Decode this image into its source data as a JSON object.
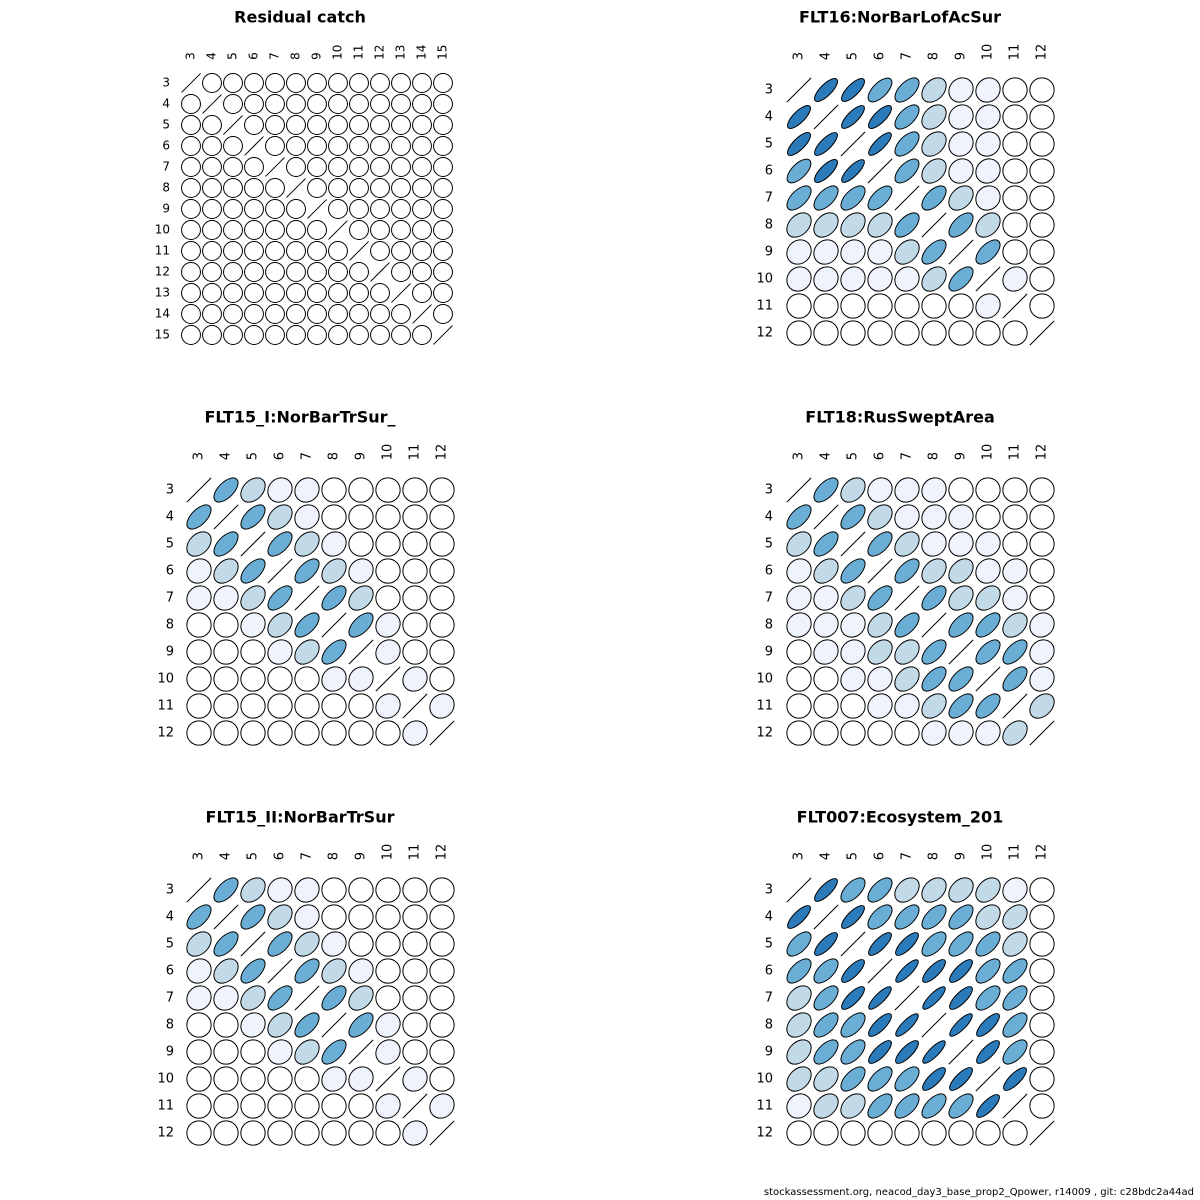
{
  "footer": "stockassessment.org, neacod_day3_base_prop2_Qpower, r14009 , git: c28bdc2a44ad",
  "colors": {
    "level_0": "#ffffff",
    "level_1": "#eef3fd",
    "level_2": "#c2d9e8",
    "level_3": "#6aaed6",
    "level_4": "#2b7bbb",
    "outline": "#000000"
  },
  "chart_data": [
    {
      "type": "heatmap",
      "title": "Residual catch",
      "ages": [
        3,
        4,
        5,
        6,
        7,
        8,
        9,
        10,
        11,
        12,
        13,
        14,
        15
      ],
      "correlation": [
        [
          1,
          0,
          0,
          0,
          0,
          0,
          0,
          0,
          0,
          0,
          0,
          0,
          0
        ],
        [
          0,
          1,
          0,
          0,
          0,
          0,
          0,
          0,
          0,
          0,
          0,
          0,
          0
        ],
        [
          0,
          0,
          1,
          0,
          0,
          0,
          0,
          0,
          0,
          0,
          0,
          0,
          0
        ],
        [
          0,
          0,
          0,
          1,
          0,
          0,
          0,
          0,
          0,
          0,
          0,
          0,
          0
        ],
        [
          0,
          0,
          0,
          0,
          1,
          0,
          0,
          0,
          0,
          0,
          0,
          0,
          0
        ],
        [
          0,
          0,
          0,
          0,
          0,
          1,
          0,
          0,
          0,
          0,
          0,
          0,
          0
        ],
        [
          0,
          0,
          0,
          0,
          0,
          0,
          1,
          0,
          0,
          0,
          0,
          0,
          0
        ],
        [
          0,
          0,
          0,
          0,
          0,
          0,
          0,
          1,
          0,
          0,
          0,
          0,
          0
        ],
        [
          0,
          0,
          0,
          0,
          0,
          0,
          0,
          0,
          1,
          0,
          0,
          0,
          0
        ],
        [
          0,
          0,
          0,
          0,
          0,
          0,
          0,
          0,
          0,
          1,
          0,
          0,
          0
        ],
        [
          0,
          0,
          0,
          0,
          0,
          0,
          0,
          0,
          0,
          0,
          1,
          0,
          0
        ],
        [
          0,
          0,
          0,
          0,
          0,
          0,
          0,
          0,
          0,
          0,
          0,
          1,
          0
        ],
        [
          0,
          0,
          0,
          0,
          0,
          0,
          0,
          0,
          0,
          0,
          0,
          0,
          1
        ]
      ]
    },
    {
      "type": "heatmap",
      "title": "FLT16:NorBarLofAcSur",
      "ages": [
        3,
        4,
        5,
        6,
        7,
        8,
        9,
        10,
        11,
        12
      ],
      "correlation": [
        [
          1,
          0.78,
          0.78,
          0.65,
          0.6,
          0.35,
          0.12,
          0.1,
          0,
          0
        ],
        [
          0.78,
          1,
          0.8,
          0.78,
          0.6,
          0.35,
          0.12,
          0.1,
          0,
          0
        ],
        [
          0.78,
          0.8,
          1,
          0.82,
          0.6,
          0.35,
          0.12,
          0.1,
          0,
          0
        ],
        [
          0.65,
          0.78,
          0.82,
          1,
          0.62,
          0.35,
          0.12,
          0.1,
          0,
          0
        ],
        [
          0.6,
          0.6,
          0.6,
          0.62,
          1,
          0.58,
          0.35,
          0.1,
          0,
          0
        ],
        [
          0.35,
          0.35,
          0.35,
          0.35,
          0.58,
          1,
          0.6,
          0.35,
          0,
          0
        ],
        [
          0.12,
          0.12,
          0.12,
          0.12,
          0.35,
          0.6,
          1,
          0.6,
          0,
          0
        ],
        [
          0.1,
          0.1,
          0.1,
          0.1,
          0.1,
          0.35,
          0.6,
          1,
          0.12,
          0
        ],
        [
          0,
          0,
          0,
          0,
          0,
          0,
          0,
          0.12,
          1,
          0
        ],
        [
          0,
          0,
          0,
          0,
          0,
          0,
          0,
          0,
          0,
          1
        ]
      ]
    },
    {
      "type": "heatmap",
      "title": "FLT15_I:NorBarTrSur_",
      "ages": [
        3,
        4,
        5,
        6,
        7,
        8,
        9,
        10,
        11,
        12
      ],
      "correlation": [
        [
          1,
          0.6,
          0.35,
          0.12,
          0.1,
          0,
          0,
          0,
          0,
          0
        ],
        [
          0.6,
          1,
          0.6,
          0.35,
          0.12,
          0,
          0,
          0,
          0,
          0
        ],
        [
          0.35,
          0.6,
          1,
          0.6,
          0.35,
          0.12,
          0,
          0,
          0,
          0
        ],
        [
          0.12,
          0.35,
          0.6,
          1,
          0.6,
          0.35,
          0.12,
          0,
          0,
          0
        ],
        [
          0.1,
          0.12,
          0.35,
          0.6,
          1,
          0.6,
          0.35,
          0,
          0,
          0
        ],
        [
          0,
          0,
          0.12,
          0.35,
          0.6,
          1,
          0.6,
          0.12,
          0,
          0
        ],
        [
          0,
          0,
          0,
          0.12,
          0.35,
          0.6,
          1,
          0.12,
          0,
          0
        ],
        [
          0,
          0,
          0,
          0,
          0,
          0.12,
          0.12,
          1,
          0.12,
          0
        ],
        [
          0,
          0,
          0,
          0,
          0,
          0,
          0,
          0.12,
          1,
          0.12
        ],
        [
          0,
          0,
          0,
          0,
          0,
          0,
          0,
          0,
          0.12,
          1
        ]
      ]
    },
    {
      "type": "heatmap",
      "title": "FLT18:RusSweptArea",
      "ages": [
        3,
        4,
        5,
        6,
        7,
        8,
        9,
        10,
        11,
        12
      ],
      "correlation": [
        [
          1,
          0.6,
          0.35,
          0.12,
          0.1,
          0.1,
          0,
          0,
          0,
          0
        ],
        [
          0.6,
          1,
          0.6,
          0.35,
          0.12,
          0.1,
          0.1,
          0,
          0,
          0
        ],
        [
          0.35,
          0.6,
          1,
          0.6,
          0.35,
          0.12,
          0.1,
          0.1,
          0,
          0
        ],
        [
          0.12,
          0.35,
          0.6,
          1,
          0.6,
          0.35,
          0.35,
          0.12,
          0.1,
          0
        ],
        [
          0.12,
          0.12,
          0.35,
          0.6,
          1,
          0.6,
          0.35,
          0.35,
          0.12,
          0
        ],
        [
          0.12,
          0.12,
          0.12,
          0.35,
          0.6,
          1,
          0.6,
          0.6,
          0.35,
          0.12
        ],
        [
          0,
          0.12,
          0.12,
          0.35,
          0.35,
          0.6,
          1,
          0.6,
          0.6,
          0.12
        ],
        [
          0,
          0,
          0.12,
          0.12,
          0.35,
          0.6,
          0.6,
          1,
          0.6,
          0.12
        ],
        [
          0,
          0,
          0,
          0.12,
          0.12,
          0.35,
          0.6,
          0.6,
          1,
          0.35
        ],
        [
          0,
          0,
          0,
          0,
          0,
          0.12,
          0.12,
          0.12,
          0.35,
          1
        ]
      ]
    },
    {
      "type": "heatmap",
      "title": "FLT15_II:NorBarTrSur",
      "ages": [
        3,
        4,
        5,
        6,
        7,
        8,
        9,
        10,
        11,
        12
      ],
      "correlation": [
        [
          1,
          0.6,
          0.35,
          0.12,
          0.1,
          0,
          0,
          0,
          0,
          0
        ],
        [
          0.6,
          1,
          0.6,
          0.35,
          0.12,
          0,
          0,
          0,
          0,
          0
        ],
        [
          0.35,
          0.6,
          1,
          0.6,
          0.35,
          0.12,
          0,
          0,
          0,
          0
        ],
        [
          0.12,
          0.35,
          0.6,
          1,
          0.6,
          0.35,
          0.12,
          0,
          0,
          0
        ],
        [
          0.1,
          0.12,
          0.35,
          0.6,
          1,
          0.6,
          0.35,
          0,
          0,
          0
        ],
        [
          0,
          0,
          0.12,
          0.35,
          0.6,
          1,
          0.6,
          0.12,
          0,
          0
        ],
        [
          0,
          0,
          0,
          0.12,
          0.35,
          0.6,
          1,
          0.12,
          0,
          0
        ],
        [
          0,
          0,
          0,
          0,
          0,
          0.12,
          0.12,
          1,
          0.12,
          0
        ],
        [
          0,
          0,
          0,
          0,
          0,
          0,
          0,
          0.12,
          1,
          0.12
        ],
        [
          0,
          0,
          0,
          0,
          0,
          0,
          0,
          0,
          0.12,
          1
        ]
      ]
    },
    {
      "type": "heatmap",
      "title": "FLT007:Ecosystem_201",
      "ages": [
        3,
        4,
        5,
        6,
        7,
        8,
        9,
        10,
        11,
        12
      ],
      "correlation": [
        [
          1,
          0.8,
          0.6,
          0.6,
          0.35,
          0.35,
          0.35,
          0.35,
          0.12,
          0
        ],
        [
          0.8,
          1,
          0.8,
          0.6,
          0.6,
          0.6,
          0.6,
          0.35,
          0.35,
          0
        ],
        [
          0.6,
          0.8,
          1,
          0.8,
          0.8,
          0.6,
          0.6,
          0.6,
          0.35,
          0
        ],
        [
          0.6,
          0.6,
          0.8,
          1,
          0.85,
          0.8,
          0.8,
          0.6,
          0.6,
          0
        ],
        [
          0.35,
          0.6,
          0.8,
          0.85,
          1,
          0.85,
          0.8,
          0.6,
          0.6,
          0
        ],
        [
          0.35,
          0.6,
          0.6,
          0.8,
          0.85,
          1,
          0.85,
          0.8,
          0.6,
          0
        ],
        [
          0.35,
          0.6,
          0.6,
          0.8,
          0.8,
          0.85,
          1,
          0.8,
          0.6,
          0
        ],
        [
          0.35,
          0.35,
          0.6,
          0.6,
          0.6,
          0.8,
          0.8,
          1,
          0.8,
          0
        ],
        [
          0.12,
          0.35,
          0.35,
          0.6,
          0.6,
          0.6,
          0.6,
          0.8,
          1,
          0
        ],
        [
          0,
          0,
          0,
          0,
          0,
          0,
          0,
          0,
          0,
          1
        ]
      ]
    }
  ]
}
